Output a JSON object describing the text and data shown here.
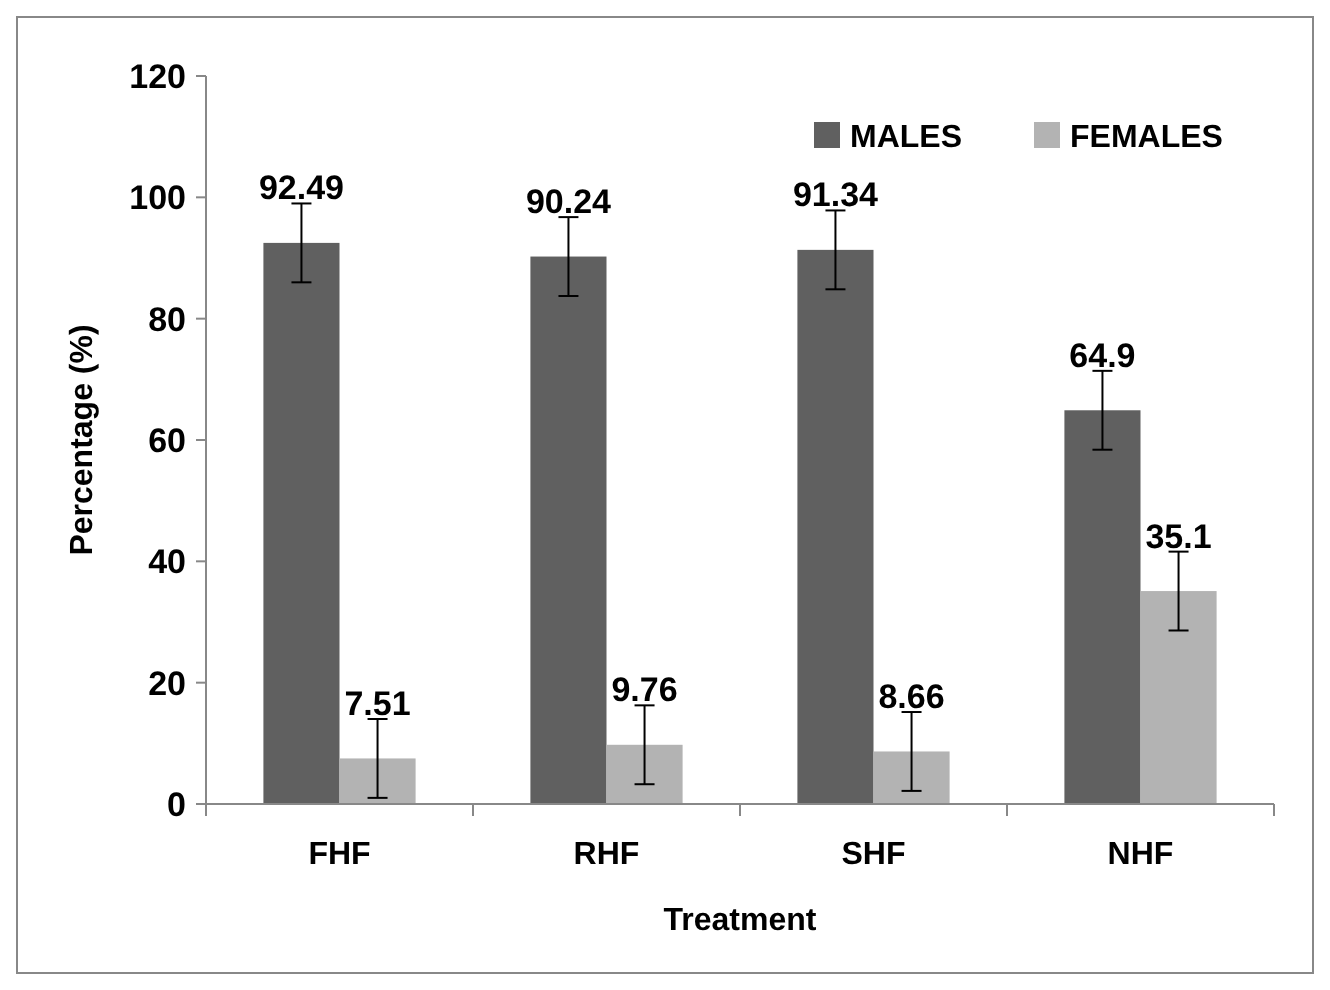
{
  "chart_data": {
    "type": "bar",
    "xlabel": "Treatment",
    "ylabel": "Percentage (%)",
    "categories": [
      "FHF",
      "RHF",
      "SHF",
      "NHF"
    ],
    "series": [
      {
        "name": "MALES",
        "color": "#606060",
        "values": [
          92.49,
          90.24,
          91.34,
          64.9
        ],
        "errors": [
          6.5,
          6.5,
          6.5,
          6.5
        ]
      },
      {
        "name": "FEMALES",
        "color": "#b3b3b3",
        "values": [
          7.51,
          9.76,
          8.66,
          35.1
        ],
        "errors": [
          6.5,
          6.5,
          6.5,
          6.5
        ]
      }
    ],
    "ylim": [
      0,
      120
    ],
    "yticks": [
      0,
      20,
      40,
      60,
      80,
      100,
      120
    ],
    "grid": false,
    "legend": "top right",
    "data_labels": true
  }
}
